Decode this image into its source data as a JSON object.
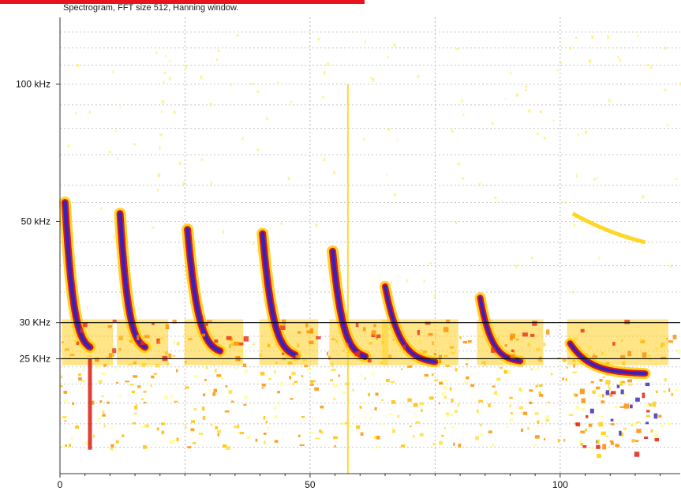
{
  "chart_data": {
    "type": "heatmap",
    "title": "Spectrogram, FFT size 512, Hanning window.",
    "xlabel": "",
    "ylabel": "",
    "xlim": [
      0,
      124
    ],
    "ylim": [
      14,
      140
    ],
    "y_scale": "log",
    "x_ticks": [
      0,
      50,
      100
    ],
    "x_tick_labels": [
      "0",
      "50",
      "100"
    ],
    "y_ticks": [
      100,
      50,
      30,
      25
    ],
    "y_tick_labels": [
      "100 kHz",
      "50 kHz",
      "30 KHz",
      "25 KHz"
    ],
    "reference_lines": [
      {
        "label": "30 KHz",
        "y": 30
      },
      {
        "label": "25 KHz",
        "y": 25
      }
    ],
    "grid": true,
    "colormap": [
      "#ffff80",
      "#ffd000",
      "#ff8000",
      "#e01010",
      "#a01040",
      "#3020c0"
    ],
    "calls": [
      {
        "start": 1,
        "end": 6,
        "f_start": 55,
        "f_end": 26.5
      },
      {
        "start": 12,
        "end": 17,
        "f_start": 52,
        "f_end": 26.5
      },
      {
        "start": 25.5,
        "end": 32,
        "f_start": 48,
        "f_end": 26
      },
      {
        "start": 40.5,
        "end": 47,
        "f_start": 47,
        "f_end": 25.5
      },
      {
        "start": 54.5,
        "end": 61,
        "f_start": 43,
        "f_end": 25.3
      },
      {
        "start": 65,
        "end": 75,
        "f_start": 36,
        "f_end": 24.6
      },
      {
        "start": 84,
        "end": 92,
        "f_start": 34,
        "f_end": 24.7
      },
      {
        "start": 102,
        "end": 117,
        "f_start": 27,
        "f_end": 23.2
      }
    ],
    "harmonics": [
      {
        "start": 102.5,
        "end": 117,
        "f_start": 52,
        "f_end": 45
      }
    ]
  }
}
